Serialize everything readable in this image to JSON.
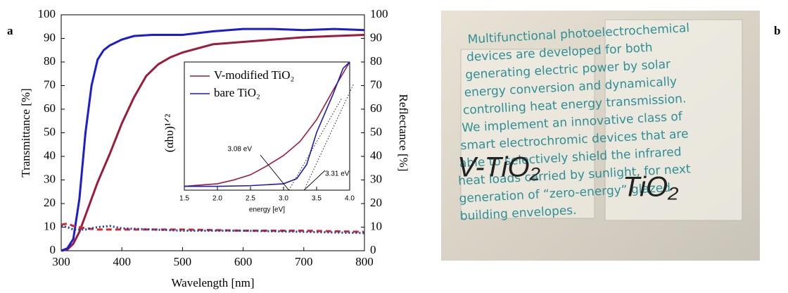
{
  "chart_data": [
    {
      "type": "line",
      "panel_label": "a",
      "xlabel": "Wavelength [nm]",
      "ylabel": "Transmittance [%]",
      "y2label": "Reflectance [%]",
      "xlim": [
        300,
        800
      ],
      "xticks": [
        300,
        400,
        500,
        600,
        700,
        800
      ],
      "ylim": [
        0,
        100
      ],
      "yticks": [
        0,
        10,
        20,
        30,
        40,
        50,
        60,
        70,
        80,
        90,
        100
      ],
      "y2lim": [
        0,
        100
      ],
      "y2ticks": [
        0,
        10,
        20,
        30,
        40,
        50,
        60,
        70,
        80,
        90,
        100
      ],
      "series": [
        {
          "color": "#9b1c3c",
          "style": "solid",
          "x": [
            300,
            310,
            320,
            330,
            340,
            350,
            360,
            380,
            400,
            420,
            440,
            460,
            480,
            500,
            550,
            600,
            650,
            700,
            750,
            800
          ],
          "values": [
            0,
            0.5,
            3,
            8,
            15,
            22,
            29,
            41,
            54,
            65,
            74,
            79,
            82,
            84,
            87.5,
            88.5,
            89.5,
            90.5,
            91,
            91.5
          ]
        },
        {
          "color": "#1c1cd0",
          "style": "solid",
          "x": [
            300,
            310,
            320,
            330,
            340,
            350,
            360,
            370,
            380,
            400,
            420,
            450,
            500,
            550,
            600,
            650,
            700,
            750,
            800
          ],
          "values": [
            0,
            1,
            5,
            22,
            50,
            70,
            81,
            85,
            87,
            89.5,
            91,
            91.5,
            91.5,
            93,
            94,
            94,
            93.5,
            94,
            93.5
          ]
        },
        {
          "color": "#d42a2a",
          "style": "dashed",
          "axis": "y2",
          "x": [
            300,
            310,
            320,
            340,
            360,
            400,
            500,
            600,
            700,
            800
          ],
          "values": [
            11,
            11.5,
            10.5,
            9.5,
            9,
            9,
            9,
            8.5,
            8.5,
            8
          ]
        },
        {
          "color": "#1c3cb4",
          "style": "dotted",
          "axis": "y2",
          "x": [
            300,
            310,
            320,
            340,
            360,
            380,
            400,
            450,
            500,
            600,
            700,
            800
          ],
          "values": [
            10.5,
            10,
            9,
            9,
            10,
            10.5,
            9.5,
            9,
            8.5,
            8.5,
            8,
            7.5
          ]
        }
      ]
    },
    {
      "type": "line",
      "xlabel": "energy [eV]",
      "ylabel": "(αhυ)¹ᐟ²",
      "xlim": [
        1.5,
        4.0
      ],
      "xticks": [
        1.5,
        {
          "value": 2,
          "label": "2.0"
        },
        2.5,
        {
          "value": 3,
          "label": "3.0"
        },
        3.5,
        {
          "value": 4,
          "label": "4.0"
        }
      ],
      "ylim": [
        0,
        100
      ],
      "legend": "upper left",
      "series": [
        {
          "name": "V-modified TiO₂",
          "color": "#9b1c3c",
          "style": "solid",
          "x": [
            1.5,
            1.75,
            2,
            2.25,
            2.5,
            2.75,
            3,
            3.25,
            3.5,
            3.75,
            4
          ],
          "values": [
            3,
            4,
            5,
            8,
            12,
            19,
            27,
            38,
            55,
            78,
            100
          ]
        },
        {
          "name": "bare TiO₂",
          "color": "#1c1cb4",
          "style": "solid",
          "x": [
            1.5,
            2,
            2.5,
            3,
            3.2,
            3.35,
            3.5,
            3.75,
            3.9,
            4
          ],
          "values": [
            3,
            3,
            3.5,
            5,
            9,
            20,
            45,
            75,
            95,
            100
          ]
        }
      ],
      "annotations": [
        {
          "text": "3.08 eV",
          "value": 3.08
        },
        {
          "text": "3.31 eV",
          "value": 3.31
        }
      ]
    }
  ],
  "photo": {
    "panel_label": "b",
    "lines": [
      "Multifunctional photoelectrochemical",
      "devices are developed for both",
      "generating electric power by solar",
      "energy conversion and dynamically",
      "controlling heat energy transmission.",
      "We implement an innovative class of",
      "smart electrochromic devices that are",
      "able to selectively shield the infrared",
      "heat loads carried by sunlight, for next",
      "generation of “zero-energy” glazed",
      "building envelopes."
    ],
    "handwriting": [
      "V-TiO₂",
      "TiO₂"
    ]
  }
}
